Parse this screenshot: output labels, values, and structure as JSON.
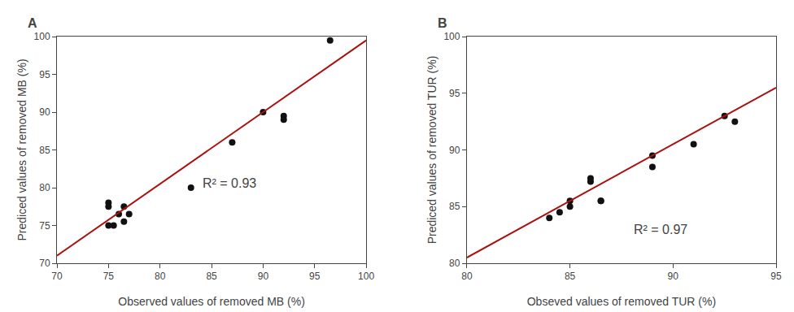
{
  "chart_data": [
    {
      "type": "scatter",
      "title": "A",
      "xlabel": "Observed values of removed MB (%)",
      "ylabel": "Prediced values of removed MB (%)",
      "series": [
        {
          "type": "scatter",
          "color": "#111111",
          "x": [
            75,
            75,
            75,
            75.5,
            76,
            76.5,
            76.5,
            77,
            83,
            87,
            90,
            92,
            92,
            96.5
          ],
          "values": [
            78,
            77.5,
            75,
            75,
            76.5,
            77.5,
            75.5,
            76.5,
            80,
            86,
            90,
            89.5,
            89,
            99.5
          ]
        },
        {
          "type": "line",
          "color": "#aa1111",
          "x": [
            70,
            100
          ],
          "values": [
            71.0,
            99.5
          ]
        }
      ],
      "annotations": [
        {
          "text": "R² = 0.93",
          "x": 84,
          "y": 79.5
        }
      ],
      "xlim": [
        70,
        100
      ],
      "ylim": [
        70,
        100
      ],
      "xticks": [
        70,
        75,
        80,
        85,
        90,
        95,
        100
      ],
      "yticks": [
        70,
        75,
        80,
        85,
        90,
        95,
        100
      ],
      "grid": false
    },
    {
      "type": "scatter",
      "title": "B",
      "xlabel": "Obseved values of removed TUR (%)",
      "ylabel": "Prediced values of removed TUR (%)",
      "series": [
        {
          "type": "scatter",
          "color": "#111111",
          "x": [
            84,
            84.5,
            85,
            85,
            86,
            86,
            86.5,
            86.5,
            89,
            89,
            91,
            92.5,
            93
          ],
          "values": [
            84,
            84.5,
            85.5,
            85,
            87.2,
            87.5,
            85.5,
            85.5,
            88.5,
            89.5,
            90.5,
            93,
            92.5
          ]
        },
        {
          "type": "line",
          "color": "#aa1111",
          "x": [
            80,
            95
          ],
          "values": [
            80.5,
            95.5
          ]
        }
      ],
      "annotations": [
        {
          "text": "R² = 0.97",
          "x": 88.0,
          "y": 82.2
        }
      ],
      "xlim": [
        80,
        95
      ],
      "ylim": [
        80,
        100
      ],
      "xticks": [
        80,
        85,
        90,
        95
      ],
      "yticks": [
        80,
        85,
        90,
        95,
        100
      ],
      "grid": false
    }
  ]
}
